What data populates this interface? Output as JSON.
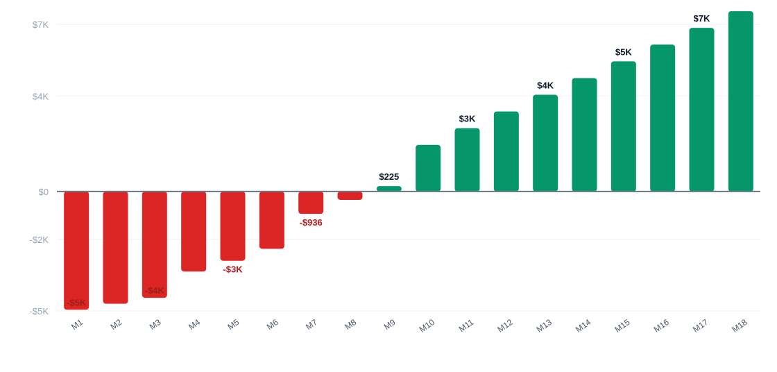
{
  "chart_data": {
    "type": "bar",
    "title": "",
    "xlabel": "",
    "ylabel": "",
    "ylim": [
      -5000,
      7000
    ],
    "y_ticks": [
      {
        "value": -5000,
        "label": "-$5K"
      },
      {
        "value": -2000,
        "label": "-$2K"
      },
      {
        "value": 0,
        "label": "$0"
      },
      {
        "value": 4000,
        "label": "$4K"
      },
      {
        "value": 7000,
        "label": "$7K"
      }
    ],
    "grid": true,
    "legend": "none",
    "categories": [
      "M1",
      "M2",
      "M3",
      "M4",
      "M5",
      "M6",
      "M7",
      "M8",
      "M9",
      "M10",
      "M11",
      "M12",
      "M13",
      "M14",
      "M15",
      "M16",
      "M17",
      "M18"
    ],
    "values": [
      -4950,
      -4700,
      -4450,
      -3350,
      -2900,
      -2400,
      -936,
      -350,
      225,
      1950,
      2650,
      3350,
      4050,
      4750,
      5450,
      6150,
      6850,
      7550
    ],
    "data_labels": [
      "-$5K",
      "",
      "-$4K",
      "",
      "-$3K",
      "",
      "-$936",
      "",
      "$225",
      "",
      "$3K",
      "",
      "$4K",
      "",
      "$5K",
      "",
      "$7K",
      ""
    ],
    "colors": {
      "positive": "#059669",
      "negative": "#dc2626",
      "positive_label": "#0f172a",
      "negative_label": "#b91c1c",
      "inside_label": "#a11b1b"
    }
  }
}
